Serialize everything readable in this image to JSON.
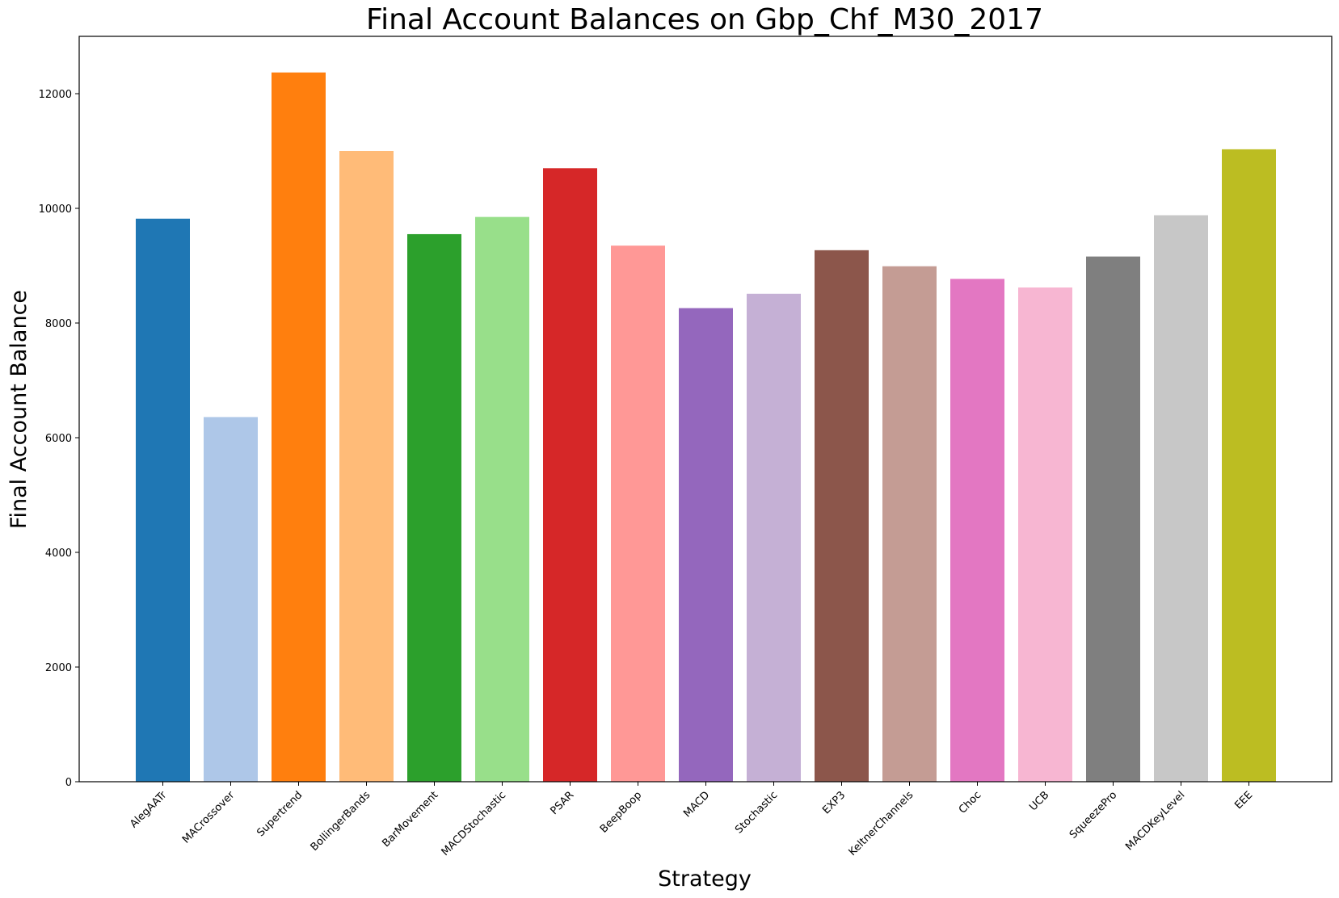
{
  "chart_data": {
    "type": "bar",
    "title": "Final Account Balances on Gbp_Chf_M30_2017",
    "xlabel": "Strategy",
    "ylabel": "Final Account Balance",
    "ylim": [
      0,
      13000
    ],
    "yticks": [
      0,
      2000,
      4000,
      6000,
      8000,
      10000,
      12000
    ],
    "ytick_labels": [
      "0",
      "2000",
      "4000",
      "6000",
      "8000",
      "10000",
      "12000"
    ],
    "grid": false,
    "categories": [
      "AlegAATr",
      "MACrossover",
      "Supertrend",
      "BollingerBands",
      "BarMovement",
      "MACDStochastic",
      "PSAR",
      "BeepBoop",
      "MACD",
      "Stochastic",
      "EXP3",
      "KeltnerChannels",
      "Choc",
      "UCB",
      "SqueezePro",
      "MACDKeyLevel",
      "EEE"
    ],
    "values": [
      9820,
      6360,
      12370,
      11000,
      9550,
      9850,
      10700,
      9350,
      8260,
      8510,
      9270,
      8990,
      8770,
      8620,
      9160,
      9880,
      11030
    ],
    "colors": [
      "#1f77b4",
      "#aec7e8",
      "#ff7f0e",
      "#ffbb78",
      "#2ca02c",
      "#98df8a",
      "#d62728",
      "#ff9896",
      "#9467bd",
      "#c5b0d5",
      "#8c564b",
      "#c49c94",
      "#e377c2",
      "#f7b6d2",
      "#7f7f7f",
      "#c7c7c7",
      "#bcbd22"
    ]
  }
}
